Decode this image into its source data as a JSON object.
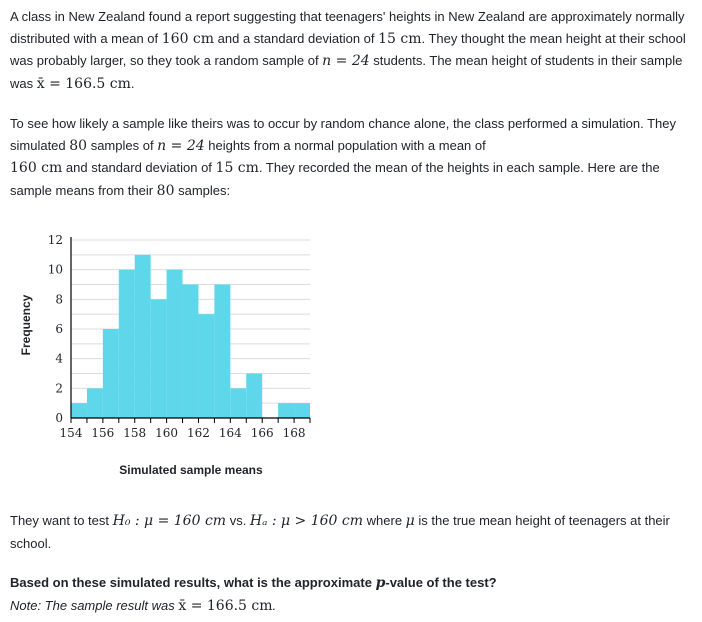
{
  "intro": {
    "t1": "A class in New Zealand found a report suggesting that teenagers' heights in New Zealand are approximately normally distributed with a mean of ",
    "m1": "160 cm",
    "t2": " and a standard deviation of ",
    "m2": "15 cm",
    "t3": ". They thought the mean height at their school was probably larger, so they took a random sample of ",
    "m3": "n = 24",
    "t4": " students. The mean height of students in their sample was ",
    "m4": "x̄ = 166.5 cm",
    "t5": "."
  },
  "simulation": {
    "t1": "To see how likely a sample like theirs was to occur by random chance alone, the class performed a simulation. They simulated ",
    "m1": "80",
    "t2": " samples of ",
    "m2": "n = 24",
    "t3": " heights from a normal population with a mean of ",
    "m3": "160 cm",
    "t4": " and standard deviation of ",
    "m4": "15 cm",
    "t5": ". They recorded the mean of the heights in each sample. Here are the sample means from their ",
    "m5": "80",
    "t6": " samples:"
  },
  "hypotheses": {
    "t1": "They want to test ",
    "m1": "H₀ : μ = 160 cm",
    "t2": " vs. ",
    "m2": "Hₐ : μ > 160 cm",
    "t3": " where ",
    "m3": "μ",
    "t4": " is the true mean height of teenagers at their school."
  },
  "question": {
    "t1": "Based on these simulated results, what is the approximate ",
    "m1": "p",
    "t2": "-value of the test?",
    "note_t1": "Note: The sample result was ",
    "note_m1": "x̄ = 166.5 cm",
    "note_t2": "."
  },
  "chart_data": {
    "type": "bar",
    "subtype": "histogram",
    "xlabel": "Simulated sample means",
    "ylabel": "Frequency",
    "x_ticks": [
      154,
      156,
      158,
      160,
      162,
      164,
      166,
      168
    ],
    "y_ticks": [
      0,
      2,
      4,
      6,
      8,
      10,
      12
    ],
    "xlim": [
      154,
      169
    ],
    "ylim": [
      0,
      12
    ],
    "bin_width": 1,
    "bins": [
      {
        "start": 154,
        "count": 1
      },
      {
        "start": 155,
        "count": 2
      },
      {
        "start": 156,
        "count": 6
      },
      {
        "start": 157,
        "count": 10
      },
      {
        "start": 158,
        "count": 11
      },
      {
        "start": 159,
        "count": 8
      },
      {
        "start": 160,
        "count": 10
      },
      {
        "start": 161,
        "count": 9
      },
      {
        "start": 162,
        "count": 7
      },
      {
        "start": 163,
        "count": 9
      },
      {
        "start": 164,
        "count": 2
      },
      {
        "start": 165,
        "count": 3
      },
      {
        "start": 166,
        "count": 0
      },
      {
        "start": 167,
        "count": 1
      },
      {
        "start": 168,
        "count": 1
      }
    ],
    "bar_color": "#5ed7ea",
    "grid": true
  }
}
